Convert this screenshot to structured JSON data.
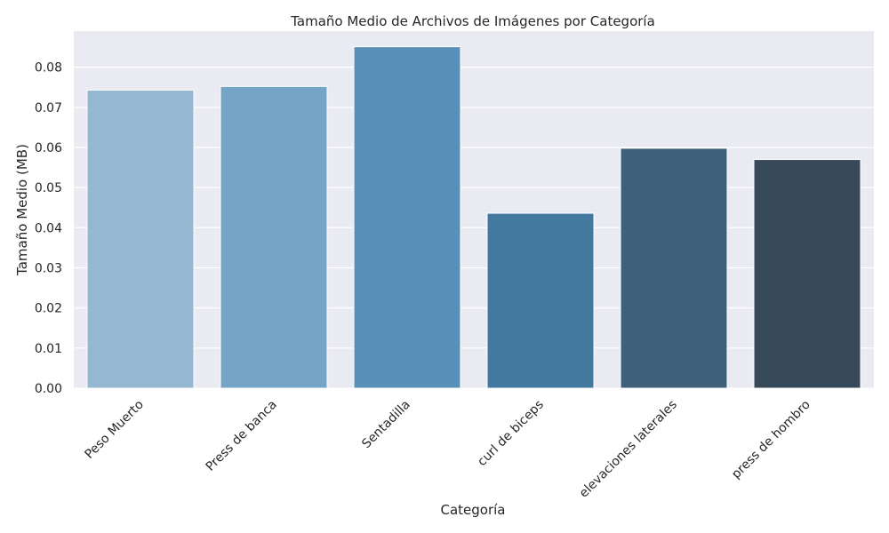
{
  "chart_data": {
    "type": "bar",
    "title": "Tamaño Medio de Archivos de Imágenes por Categoría",
    "xlabel": "Categoría",
    "ylabel": "Tamaño Medio (MB)",
    "categories": [
      "Peso Muerto",
      "Press de banca",
      "Sentadilla",
      "curl de biceps",
      "elevaciones laterales",
      "press de hombro"
    ],
    "values": [
      0.0743,
      0.0752,
      0.0851,
      0.0436,
      0.0598,
      0.057
    ],
    "ylim": [
      0,
      0.089
    ],
    "yticks": [
      "0.00",
      "0.01",
      "0.02",
      "0.03",
      "0.04",
      "0.05",
      "0.06",
      "0.07",
      "0.08"
    ],
    "colors": [
      "#94b8d2",
      "#74a5c5",
      "#5890b7",
      "#44799f",
      "#3e607a",
      "#374a59"
    ],
    "background": "#eaeaf2",
    "grid": true,
    "legend": "none"
  }
}
